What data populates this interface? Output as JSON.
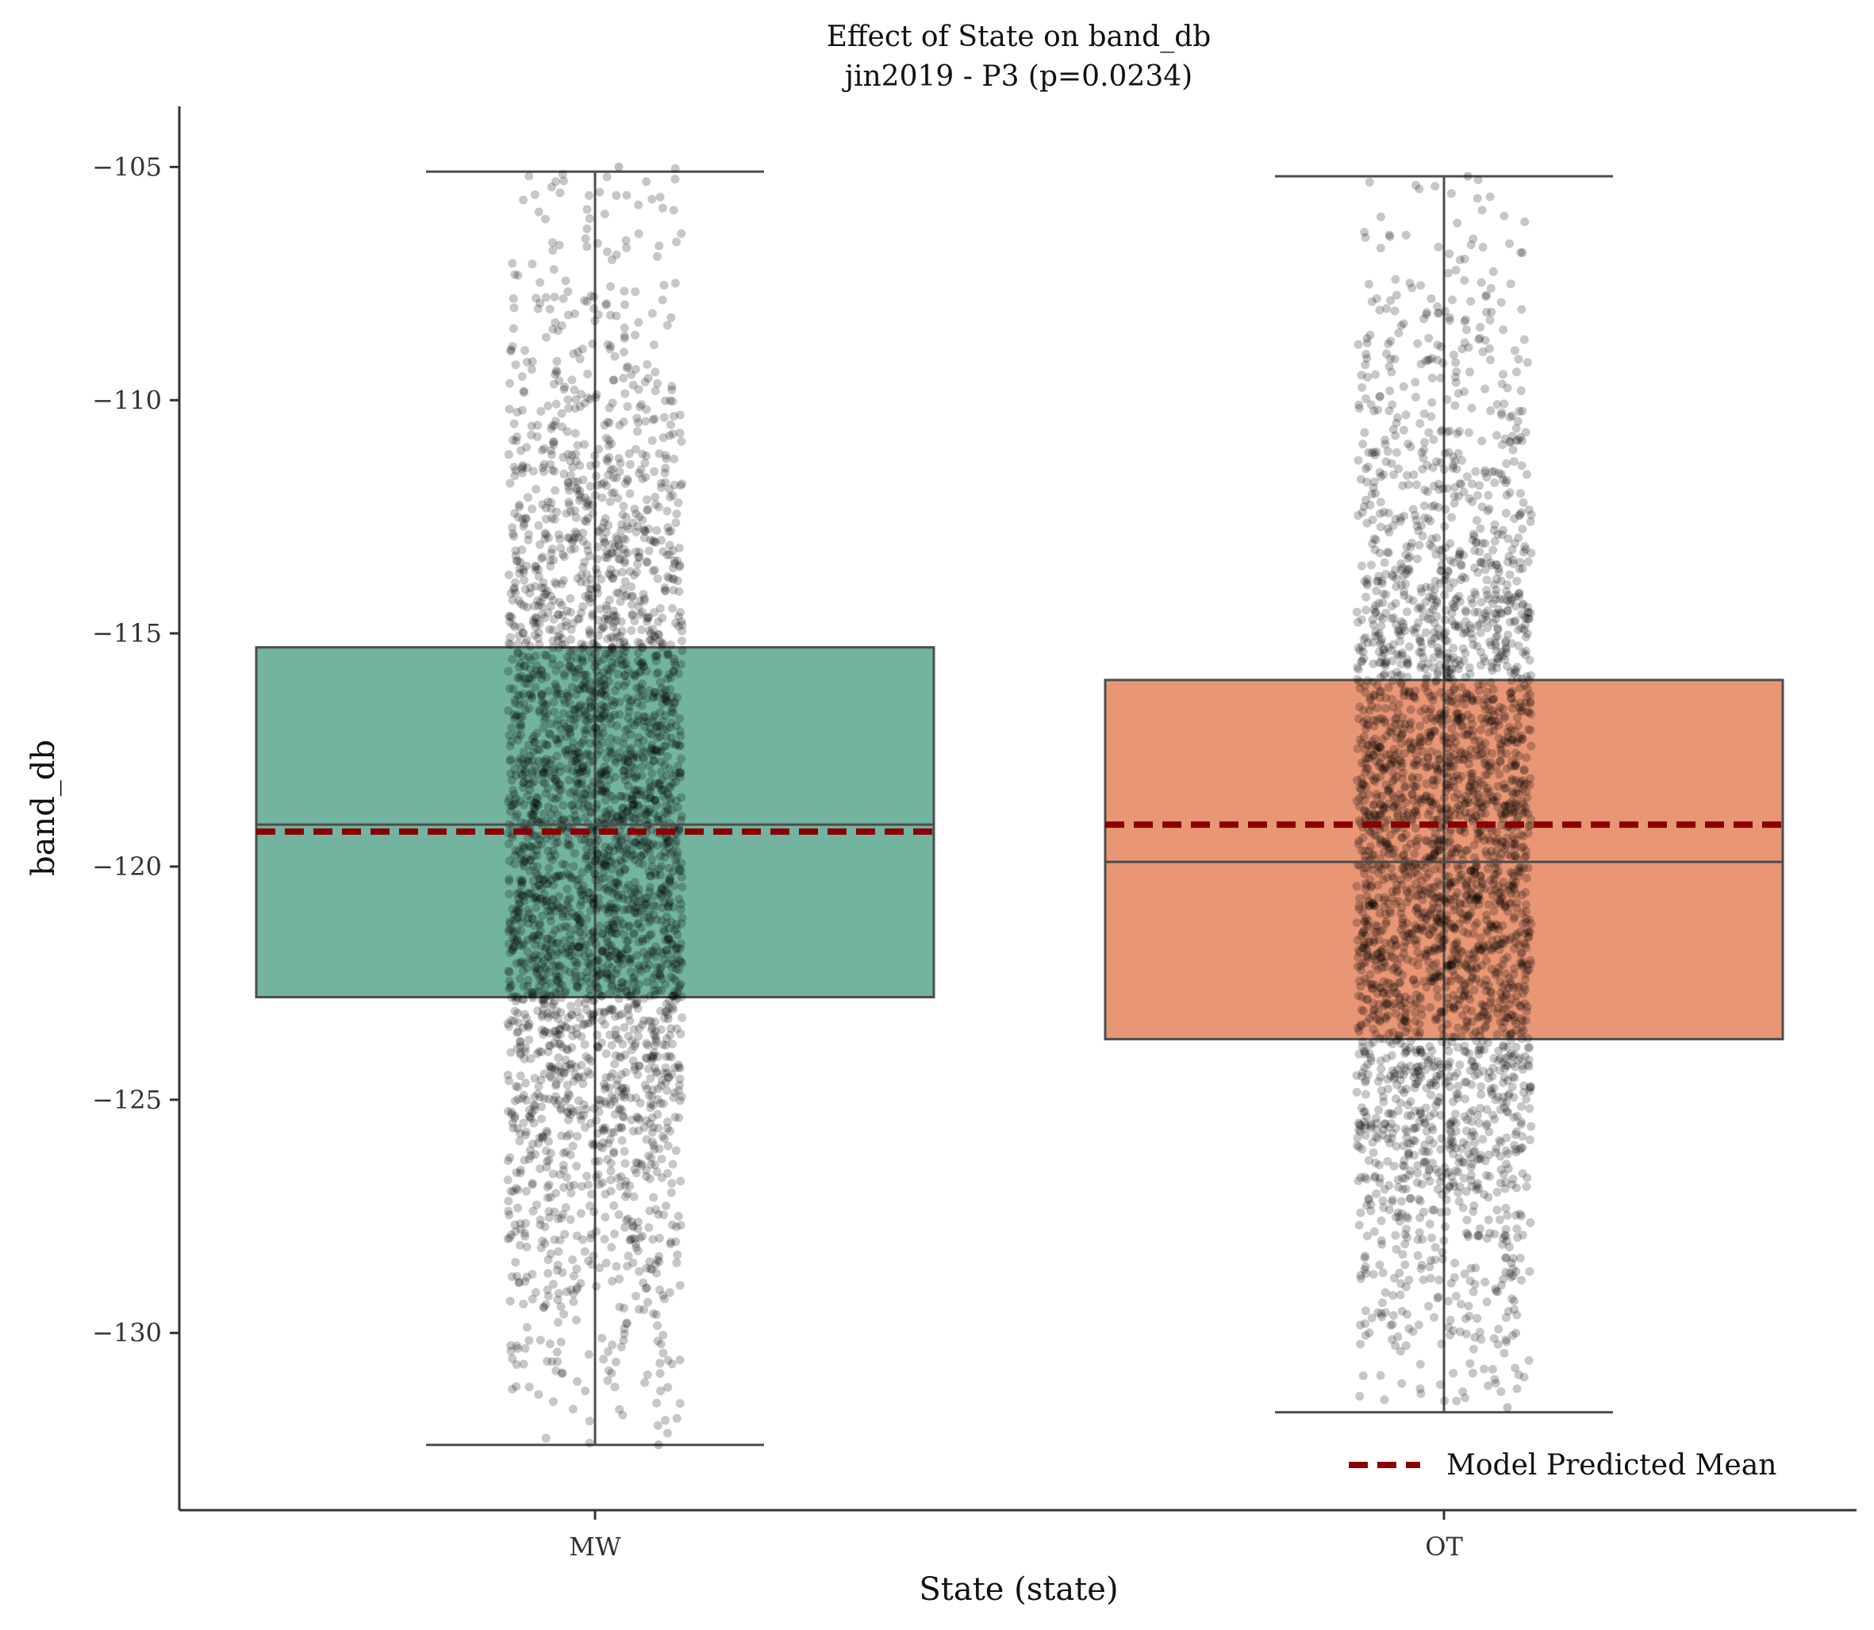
{
  "chart_data": {
    "type": "box",
    "title": "Effect of State on band_db",
    "subtitle": "jin2019 - P3 (p=0.0234)",
    "xlabel": "State (state)",
    "ylabel": "band_db",
    "ylim": [
      -133.8,
      -103.7
    ],
    "yticks": [
      -105,
      -110,
      -115,
      -120,
      -125,
      -130
    ],
    "ytick_labels": [
      "−105",
      "−110",
      "−115",
      "−120",
      "−125",
      "−130"
    ],
    "categories": [
      "MW",
      "OT"
    ],
    "boxes": [
      {
        "category": "MW",
        "whisker_low": -132.4,
        "q1": -122.8,
        "median": -119.1,
        "q3": -115.3,
        "whisker_high": -105.1,
        "predicted_mean": -119.25,
        "color": "#72b4a0",
        "point_min": -132.4,
        "point_max": -105.0
      },
      {
        "category": "OT",
        "whisker_low": -131.7,
        "q1": -123.7,
        "median": -119.9,
        "q3": -116.0,
        "whisker_high": -105.2,
        "predicted_mean": -119.1,
        "color": "#e99675",
        "point_min": -131.6,
        "point_max": -105.2
      }
    ],
    "legend": {
      "position": "bottom-right",
      "entries": [
        {
          "label": "Model Predicted Mean",
          "style": "dashed",
          "color": "#8b0000"
        }
      ]
    },
    "grid": false,
    "points_color": "#000000"
  }
}
